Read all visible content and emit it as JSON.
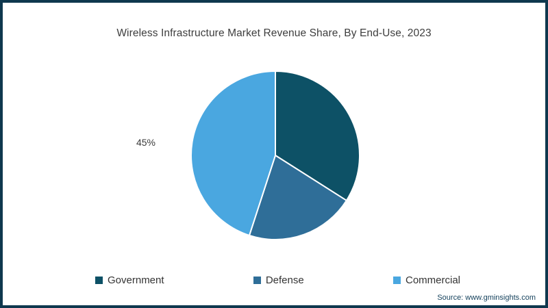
{
  "title": "Wireless Infrastructure Market Revenue Share, By End-Use, 2023",
  "frame": {
    "border_color": "#0e384e",
    "background_color": "#ffffff"
  },
  "chart_data": {
    "type": "pie",
    "categories": [
      "Government",
      "Defense",
      "Commercial"
    ],
    "values": [
      34,
      21,
      45
    ],
    "colors": [
      "#0d5166",
      "#2f6e98",
      "#4aa7e0"
    ],
    "title": "Wireless Infrastructure Market Revenue Share, By End-Use, 2023",
    "start_angle_deg": 0,
    "direction": "clockwise",
    "separator_color": "#ffffff",
    "legend_position": "bottom",
    "visible_label": {
      "category": "Commercial",
      "text": "45%"
    }
  },
  "legend": {
    "items": [
      {
        "label": "Government",
        "color": "#0d5166"
      },
      {
        "label": "Defense",
        "color": "#2f6e98"
      },
      {
        "label": "Commercial",
        "color": "#4aa7e0"
      }
    ]
  },
  "source": {
    "label": "Source: www.gminsights.com"
  }
}
